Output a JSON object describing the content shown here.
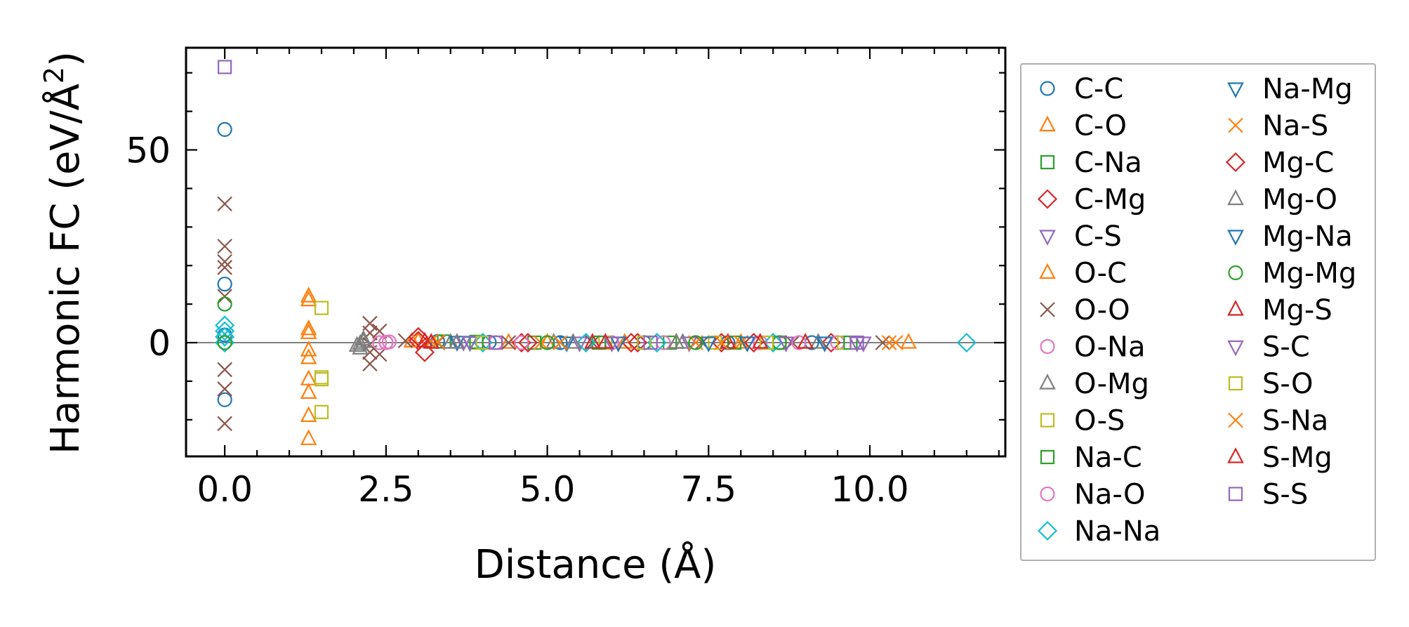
{
  "chart_data": {
    "type": "scatter",
    "title": "",
    "xlabel": "Distance (Å)",
    "ylabel_main": "Harmonic FC (eV/Å",
    "ylabel_sup": "2",
    "ylabel_close": ")",
    "xlim": [
      -0.6,
      12.1
    ],
    "ylim": [
      -29.5,
      76.5
    ],
    "xticks": [
      0.0,
      2.5,
      5.0,
      7.5,
      10.0
    ],
    "xtick_labels": [
      "0.0",
      "2.5",
      "5.0",
      "7.5",
      "10.0"
    ],
    "yticks": [
      0,
      50
    ],
    "ytick_labels": [
      "0",
      "50"
    ],
    "zero_line": true,
    "legend_position": "right, outside plot",
    "series": [
      {
        "name": "C-C",
        "marker": "circle",
        "color": "#1f77b4",
        "points": [
          [
            0,
            55.3
          ],
          [
            0,
            15.2
          ],
          [
            0,
            -14.8
          ],
          [
            0,
            2
          ],
          [
            3.3,
            0.3
          ],
          [
            4.1,
            0.1
          ],
          [
            5.2,
            0
          ],
          [
            6.5,
            0
          ],
          [
            7.8,
            0
          ],
          [
            9.1,
            0
          ]
        ]
      },
      {
        "name": "C-O",
        "marker": "triangle-up",
        "color": "#ff7f0e",
        "points": [
          [
            1.3,
            12
          ],
          [
            1.3,
            3.5
          ],
          [
            1.3,
            2.5
          ],
          [
            1.3,
            -2
          ],
          [
            1.3,
            -4
          ],
          [
            1.3,
            -9.5
          ],
          [
            1.3,
            -13
          ],
          [
            1.3,
            -19
          ],
          [
            1.3,
            -25
          ],
          [
            3.0,
            0.4
          ],
          [
            4.4,
            0
          ],
          [
            6.2,
            0
          ],
          [
            8.0,
            0
          ],
          [
            10.6,
            0
          ]
        ]
      },
      {
        "name": "C-Na",
        "marker": "square",
        "color": "#2ca02c",
        "points": [
          [
            3.4,
            0.3
          ],
          [
            4.8,
            0
          ],
          [
            6.9,
            0
          ],
          [
            8.6,
            0
          ]
        ]
      },
      {
        "name": "C-Mg",
        "marker": "diamond",
        "color": "#d62728",
        "points": [
          [
            3.0,
            0.5
          ],
          [
            3.1,
            -2.5
          ],
          [
            4.6,
            0
          ],
          [
            6.3,
            0
          ],
          [
            7.7,
            0
          ],
          [
            9.4,
            0
          ]
        ]
      },
      {
        "name": "C-S",
        "marker": "triangle-down",
        "color": "#9467bd",
        "points": [
          [
            3.7,
            0.2
          ],
          [
            5.5,
            0
          ],
          [
            7.2,
            0
          ],
          [
            9.8,
            0
          ]
        ]
      },
      {
        "name": "O-C",
        "marker": "triangle-up",
        "color": "#ff7f0e",
        "points": [
          [
            1.3,
            11
          ],
          [
            2.9,
            0.3
          ],
          [
            5.0,
            0
          ],
          [
            7.0,
            0
          ],
          [
            9.0,
            0
          ]
        ]
      },
      {
        "name": "O-O",
        "marker": "x",
        "color": "#8c564b",
        "points": [
          [
            0,
            36
          ],
          [
            0,
            25
          ],
          [
            0,
            21
          ],
          [
            0,
            19.5
          ],
          [
            0,
            12
          ],
          [
            0,
            -7
          ],
          [
            0,
            -12
          ],
          [
            0,
            -21
          ],
          [
            2.25,
            5
          ],
          [
            2.25,
            2.5
          ],
          [
            2.25,
            -0.5
          ],
          [
            2.25,
            -2.5
          ],
          [
            2.25,
            -5.5
          ],
          [
            2.4,
            3
          ],
          [
            2.4,
            -3
          ],
          [
            2.8,
            0.5
          ],
          [
            3.3,
            0
          ],
          [
            4.4,
            0
          ],
          [
            5.7,
            0
          ],
          [
            7.4,
            0
          ],
          [
            8.8,
            0
          ],
          [
            10.2,
            0
          ]
        ]
      },
      {
        "name": "O-Na",
        "marker": "circle",
        "color": "#e377c2",
        "points": [
          [
            2.4,
            0
          ],
          [
            2.5,
            0
          ],
          [
            2.55,
            0.2
          ],
          [
            4.2,
            0
          ],
          [
            6.0,
            0
          ],
          [
            8.3,
            0
          ],
          [
            9.5,
            0
          ]
        ]
      },
      {
        "name": "O-Mg",
        "marker": "triangle-up",
        "color": "#7f7f7f",
        "points": [
          [
            2.05,
            -0.8
          ],
          [
            2.1,
            -0.3
          ],
          [
            2.15,
            0.2
          ],
          [
            3.5,
            0
          ],
          [
            5.1,
            0
          ],
          [
            7.1,
            0
          ],
          [
            9.2,
            0
          ]
        ]
      },
      {
        "name": "O-S",
        "marker": "square",
        "color": "#bcbd22",
        "points": [
          [
            1.5,
            9
          ],
          [
            1.5,
            -9
          ],
          [
            1.5,
            -18
          ],
          [
            3.9,
            0
          ],
          [
            5.9,
            0
          ],
          [
            7.6,
            0
          ],
          [
            9.6,
            0
          ]
        ]
      },
      {
        "name": "Na-C",
        "marker": "square",
        "color": "#2ca02c",
        "points": [
          [
            3.9,
            0.2
          ],
          [
            5.8,
            0
          ],
          [
            7.9,
            0
          ],
          [
            9.7,
            0
          ]
        ]
      },
      {
        "name": "Na-O",
        "marker": "circle",
        "color": "#e377c2",
        "points": [
          [
            2.5,
            0.1
          ],
          [
            4.6,
            0
          ],
          [
            6.8,
            0
          ],
          [
            8.9,
            0
          ]
        ]
      },
      {
        "name": "Na-Na",
        "marker": "diamond",
        "color": "#17becf",
        "points": [
          [
            0,
            4.5
          ],
          [
            0,
            3
          ],
          [
            0,
            1.5
          ],
          [
            0,
            0
          ],
          [
            4.0,
            0
          ],
          [
            5.6,
            0
          ],
          [
            6.7,
            0
          ],
          [
            8.5,
            0
          ],
          [
            11.5,
            0
          ]
        ]
      },
      {
        "name": "Na-Mg",
        "marker": "triangle-down",
        "color": "#1f77b4",
        "points": [
          [
            3.6,
            0.2
          ],
          [
            5.3,
            0
          ],
          [
            7.5,
            0
          ],
          [
            9.3,
            0
          ]
        ]
      },
      {
        "name": "Na-S",
        "marker": "x",
        "color": "#ff7f0e",
        "points": [
          [
            3.2,
            0.4
          ],
          [
            4.9,
            0
          ],
          [
            7.3,
            0
          ],
          [
            8.0,
            0
          ],
          [
            10.3,
            0
          ]
        ]
      },
      {
        "name": "Mg-C",
        "marker": "diamond",
        "color": "#d62728",
        "points": [
          [
            3.0,
            1.5
          ],
          [
            4.7,
            0
          ],
          [
            6.4,
            0
          ],
          [
            8.2,
            0
          ]
        ]
      },
      {
        "name": "Mg-O",
        "marker": "triangle-up",
        "color": "#7f7f7f",
        "points": [
          [
            2.1,
            -1.5
          ],
          [
            2.15,
            0.8
          ],
          [
            3.6,
            0
          ],
          [
            5.4,
            0
          ],
          [
            7.0,
            0
          ]
        ]
      },
      {
        "name": "Mg-Na",
        "marker": "triangle-down",
        "color": "#1f77b4",
        "points": [
          [
            3.8,
            0.1
          ],
          [
            6.1,
            0
          ],
          [
            8.1,
            0
          ]
        ]
      },
      {
        "name": "Mg-Mg",
        "marker": "circle",
        "color": "#2ca02c",
        "points": [
          [
            0,
            10
          ],
          [
            0,
            0
          ],
          [
            5.0,
            0
          ],
          [
            7.3,
            0
          ],
          [
            8.6,
            0
          ]
        ]
      },
      {
        "name": "Mg-S",
        "marker": "triangle-up",
        "color": "#d62728",
        "points": [
          [
            3.1,
            0.3
          ],
          [
            5.7,
            0
          ],
          [
            7.8,
            0
          ],
          [
            9.0,
            0
          ]
        ]
      },
      {
        "name": "S-C",
        "marker": "triangle-down",
        "color": "#9467bd",
        "points": [
          [
            3.8,
            0.2
          ],
          [
            6.0,
            0
          ],
          [
            8.7,
            0
          ],
          [
            9.9,
            0
          ]
        ]
      },
      {
        "name": "S-O",
        "marker": "square",
        "color": "#bcbd22",
        "points": [
          [
            1.5,
            -9.5
          ],
          [
            4.0,
            0
          ],
          [
            6.5,
            0
          ],
          [
            8.4,
            0
          ]
        ]
      },
      {
        "name": "S-Na",
        "marker": "x",
        "color": "#ff7f0e",
        "points": [
          [
            3.3,
            0.2
          ],
          [
            5.2,
            0
          ],
          [
            7.7,
            0
          ],
          [
            10.4,
            0
          ]
        ]
      },
      {
        "name": "S-Mg",
        "marker": "triangle-up",
        "color": "#d62728",
        "points": [
          [
            3.2,
            0
          ],
          [
            5.9,
            0
          ],
          [
            8.3,
            0
          ]
        ]
      },
      {
        "name": "S-S",
        "marker": "square",
        "color": "#9467bd",
        "points": [
          [
            0,
            71.5
          ],
          [
            4.2,
            0
          ],
          [
            6.6,
            0
          ],
          [
            9.8,
            0
          ]
        ]
      }
    ]
  }
}
